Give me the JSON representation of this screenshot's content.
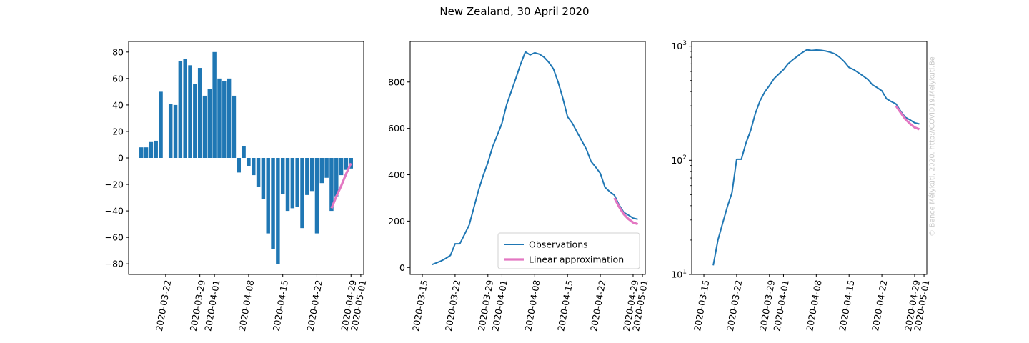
{
  "title": "New Zealand, 30 April 2020",
  "credit": "© Bence Mélykúti, 2020. http://COVID19.Melykuti.Be",
  "colors": {
    "observations": "#1f77b4",
    "approximation": "#e377c2"
  },
  "chart_data": [
    {
      "type": "bar",
      "title": "",
      "xlabel": "",
      "ylabel": "",
      "ylim": [
        -88,
        88
      ],
      "x_ticks": [
        "2020-03-22",
        "2020-03-29",
        "2020-04-01",
        "2020-04-08",
        "2020-04-15",
        "2020-04-22",
        "2020-04-29",
        "2020-05-01"
      ],
      "y_ticks": [
        -80,
        -60,
        -40,
        -20,
        0,
        20,
        40,
        60,
        80
      ],
      "grid": false,
      "series": [
        {
          "values": [
            {
              "x": "2020-03-17",
              "y": 8
            },
            {
              "x": "2020-03-18",
              "y": 8
            },
            {
              "x": "2020-03-19",
              "y": 12
            },
            {
              "x": "2020-03-20",
              "y": 13
            },
            {
              "x": "2020-03-21",
              "y": 50
            },
            {
              "x": "2020-03-22",
              "y": 0
            },
            {
              "x": "2020-03-23",
              "y": 41
            },
            {
              "x": "2020-03-24",
              "y": 40
            },
            {
              "x": "2020-03-25",
              "y": 73
            },
            {
              "x": "2020-03-26",
              "y": 75
            },
            {
              "x": "2020-03-27",
              "y": 70
            },
            {
              "x": "2020-03-28",
              "y": 56
            },
            {
              "x": "2020-03-29",
              "y": 68
            },
            {
              "x": "2020-03-30",
              "y": 47
            },
            {
              "x": "2020-03-31",
              "y": 52
            },
            {
              "x": "2020-04-01",
              "y": 80
            },
            {
              "x": "2020-04-02",
              "y": 60
            },
            {
              "x": "2020-04-03",
              "y": 58
            },
            {
              "x": "2020-04-04",
              "y": 60
            },
            {
              "x": "2020-04-05",
              "y": 47
            },
            {
              "x": "2020-04-06",
              "y": -11
            },
            {
              "x": "2020-04-07",
              "y": 9
            },
            {
              "x": "2020-04-08",
              "y": -6
            },
            {
              "x": "2020-04-09",
              "y": -13
            },
            {
              "x": "2020-04-10",
              "y": -22
            },
            {
              "x": "2020-04-11",
              "y": -31
            },
            {
              "x": "2020-04-12",
              "y": -57
            },
            {
              "x": "2020-04-13",
              "y": -69
            },
            {
              "x": "2020-04-14",
              "y": -80
            },
            {
              "x": "2020-04-15",
              "y": -27
            },
            {
              "x": "2020-04-16",
              "y": -40
            },
            {
              "x": "2020-04-17",
              "y": -38
            },
            {
              "x": "2020-04-18",
              "y": -37
            },
            {
              "x": "2020-04-19",
              "y": -53
            },
            {
              "x": "2020-04-20",
              "y": -28
            },
            {
              "x": "2020-04-21",
              "y": -25
            },
            {
              "x": "2020-04-22",
              "y": -57
            },
            {
              "x": "2020-04-23",
              "y": -19
            },
            {
              "x": "2020-04-24",
              "y": -15
            },
            {
              "x": "2020-04-25",
              "y": -40
            },
            {
              "x": "2020-04-26",
              "y": -29
            },
            {
              "x": "2020-04-27",
              "y": -13
            },
            {
              "x": "2020-04-28",
              "y": -9
            },
            {
              "x": "2020-04-29",
              "y": -8
            }
          ]
        },
        {
          "type": "line",
          "values": [
            {
              "x": "2020-04-25",
              "y": -38
            },
            {
              "x": "2020-04-26",
              "y": -29
            },
            {
              "x": "2020-04-27",
              "y": -21
            },
            {
              "x": "2020-04-28",
              "y": -12
            },
            {
              "x": "2020-04-29",
              "y": -4
            }
          ]
        }
      ]
    },
    {
      "type": "line",
      "title": "",
      "xlabel": "",
      "ylabel": "",
      "ylim": [
        -30,
        975
      ],
      "x_ticks": [
        "2020-03-15",
        "2020-03-22",
        "2020-03-29",
        "2020-04-01",
        "2020-04-08",
        "2020-04-15",
        "2020-04-22",
        "2020-04-29",
        "2020-05-01"
      ],
      "y_ticks": [
        0,
        200,
        400,
        600,
        800
      ],
      "grid": false,
      "legend": "bottom-right",
      "series": [
        {
          "name": "Observations",
          "values": [
            {
              "x": "2020-03-17",
              "y": 12
            },
            {
              "x": "2020-03-18",
              "y": 20
            },
            {
              "x": "2020-03-19",
              "y": 28
            },
            {
              "x": "2020-03-20",
              "y": 39
            },
            {
              "x": "2020-03-21",
              "y": 52
            },
            {
              "x": "2020-03-22",
              "y": 102
            },
            {
              "x": "2020-03-23",
              "y": 102
            },
            {
              "x": "2020-03-24",
              "y": 142
            },
            {
              "x": "2020-03-25",
              "y": 183
            },
            {
              "x": "2020-03-26",
              "y": 258
            },
            {
              "x": "2020-03-27",
              "y": 333
            },
            {
              "x": "2020-03-28",
              "y": 397
            },
            {
              "x": "2020-03-29",
              "y": 452
            },
            {
              "x": "2020-03-30",
              "y": 520
            },
            {
              "x": "2020-03-31",
              "y": 570
            },
            {
              "x": "2020-04-01",
              "y": 622
            },
            {
              "x": "2020-04-02",
              "y": 702
            },
            {
              "x": "2020-04-03",
              "y": 760
            },
            {
              "x": "2020-04-04",
              "y": 818
            },
            {
              "x": "2020-04-05",
              "y": 878
            },
            {
              "x": "2020-04-06",
              "y": 930
            },
            {
              "x": "2020-04-07",
              "y": 917
            },
            {
              "x": "2020-04-08",
              "y": 926
            },
            {
              "x": "2020-04-09",
              "y": 920
            },
            {
              "x": "2020-04-10",
              "y": 907
            },
            {
              "x": "2020-04-11",
              "y": 885
            },
            {
              "x": "2020-04-12",
              "y": 856
            },
            {
              "x": "2020-04-13",
              "y": 799
            },
            {
              "x": "2020-04-14",
              "y": 730
            },
            {
              "x": "2020-04-15",
              "y": 650
            },
            {
              "x": "2020-04-16",
              "y": 623
            },
            {
              "x": "2020-04-17",
              "y": 585
            },
            {
              "x": "2020-04-18",
              "y": 548
            },
            {
              "x": "2020-04-19",
              "y": 511
            },
            {
              "x": "2020-04-20",
              "y": 458
            },
            {
              "x": "2020-04-21",
              "y": 433
            },
            {
              "x": "2020-04-22",
              "y": 406
            },
            {
              "x": "2020-04-23",
              "y": 346
            },
            {
              "x": "2020-04-24",
              "y": 327
            },
            {
              "x": "2020-04-25",
              "y": 312
            },
            {
              "x": "2020-04-26",
              "y": 270
            },
            {
              "x": "2020-04-27",
              "y": 238
            },
            {
              "x": "2020-04-28",
              "y": 226
            },
            {
              "x": "2020-04-29",
              "y": 213
            },
            {
              "x": "2020-04-30",
              "y": 208
            }
          ]
        },
        {
          "name": "Linear approximation",
          "values": [
            {
              "x": "2020-04-25",
              "y": 300
            },
            {
              "x": "2020-04-26",
              "y": 262
            },
            {
              "x": "2020-04-27",
              "y": 230
            },
            {
              "x": "2020-04-28",
              "y": 209
            },
            {
              "x": "2020-04-29",
              "y": 194
            },
            {
              "x": "2020-04-30",
              "y": 187
            }
          ]
        }
      ]
    },
    {
      "type": "line",
      "title": "",
      "xlabel": "",
      "ylabel": "",
      "yscale": "log",
      "ylim": [
        10,
        1100
      ],
      "x_ticks": [
        "2020-03-15",
        "2020-03-22",
        "2020-03-29",
        "2020-04-01",
        "2020-04-08",
        "2020-04-15",
        "2020-04-22",
        "2020-04-29",
        "2020-05-01"
      ],
      "y_ticks": [
        {
          "value": 10,
          "base": "10",
          "exp": "1"
        },
        {
          "value": 100,
          "base": "10",
          "exp": "2"
        },
        {
          "value": 1000,
          "base": "10",
          "exp": "3"
        }
      ],
      "grid": false,
      "series": [
        {
          "values": [
            {
              "x": "2020-03-17",
              "y": 12
            },
            {
              "x": "2020-03-18",
              "y": 20
            },
            {
              "x": "2020-03-19",
              "y": 28
            },
            {
              "x": "2020-03-20",
              "y": 39
            },
            {
              "x": "2020-03-21",
              "y": 52
            },
            {
              "x": "2020-03-22",
              "y": 102
            },
            {
              "x": "2020-03-23",
              "y": 102
            },
            {
              "x": "2020-03-24",
              "y": 142
            },
            {
              "x": "2020-03-25",
              "y": 183
            },
            {
              "x": "2020-03-26",
              "y": 258
            },
            {
              "x": "2020-03-27",
              "y": 333
            },
            {
              "x": "2020-03-28",
              "y": 397
            },
            {
              "x": "2020-03-29",
              "y": 452
            },
            {
              "x": "2020-03-30",
              "y": 520
            },
            {
              "x": "2020-03-31",
              "y": 570
            },
            {
              "x": "2020-04-01",
              "y": 622
            },
            {
              "x": "2020-04-02",
              "y": 702
            },
            {
              "x": "2020-04-03",
              "y": 760
            },
            {
              "x": "2020-04-04",
              "y": 818
            },
            {
              "x": "2020-04-05",
              "y": 878
            },
            {
              "x": "2020-04-06",
              "y": 930
            },
            {
              "x": "2020-04-07",
              "y": 917
            },
            {
              "x": "2020-04-08",
              "y": 926
            },
            {
              "x": "2020-04-09",
              "y": 920
            },
            {
              "x": "2020-04-10",
              "y": 907
            },
            {
              "x": "2020-04-11",
              "y": 885
            },
            {
              "x": "2020-04-12",
              "y": 856
            },
            {
              "x": "2020-04-13",
              "y": 799
            },
            {
              "x": "2020-04-14",
              "y": 730
            },
            {
              "x": "2020-04-15",
              "y": 650
            },
            {
              "x": "2020-04-16",
              "y": 623
            },
            {
              "x": "2020-04-17",
              "y": 585
            },
            {
              "x": "2020-04-18",
              "y": 548
            },
            {
              "x": "2020-04-19",
              "y": 511
            },
            {
              "x": "2020-04-20",
              "y": 458
            },
            {
              "x": "2020-04-21",
              "y": 433
            },
            {
              "x": "2020-04-22",
              "y": 406
            },
            {
              "x": "2020-04-23",
              "y": 346
            },
            {
              "x": "2020-04-24",
              "y": 327
            },
            {
              "x": "2020-04-25",
              "y": 312
            },
            {
              "x": "2020-04-26",
              "y": 270
            },
            {
              "x": "2020-04-27",
              "y": 238
            },
            {
              "x": "2020-04-28",
              "y": 226
            },
            {
              "x": "2020-04-29",
              "y": 213
            },
            {
              "x": "2020-04-30",
              "y": 208
            }
          ]
        },
        {
          "values": [
            {
              "x": "2020-04-25",
              "y": 300
            },
            {
              "x": "2020-04-26",
              "y": 262
            },
            {
              "x": "2020-04-27",
              "y": 230
            },
            {
              "x": "2020-04-28",
              "y": 209
            },
            {
              "x": "2020-04-29",
              "y": 194
            },
            {
              "x": "2020-04-30",
              "y": 187
            }
          ]
        }
      ]
    }
  ]
}
